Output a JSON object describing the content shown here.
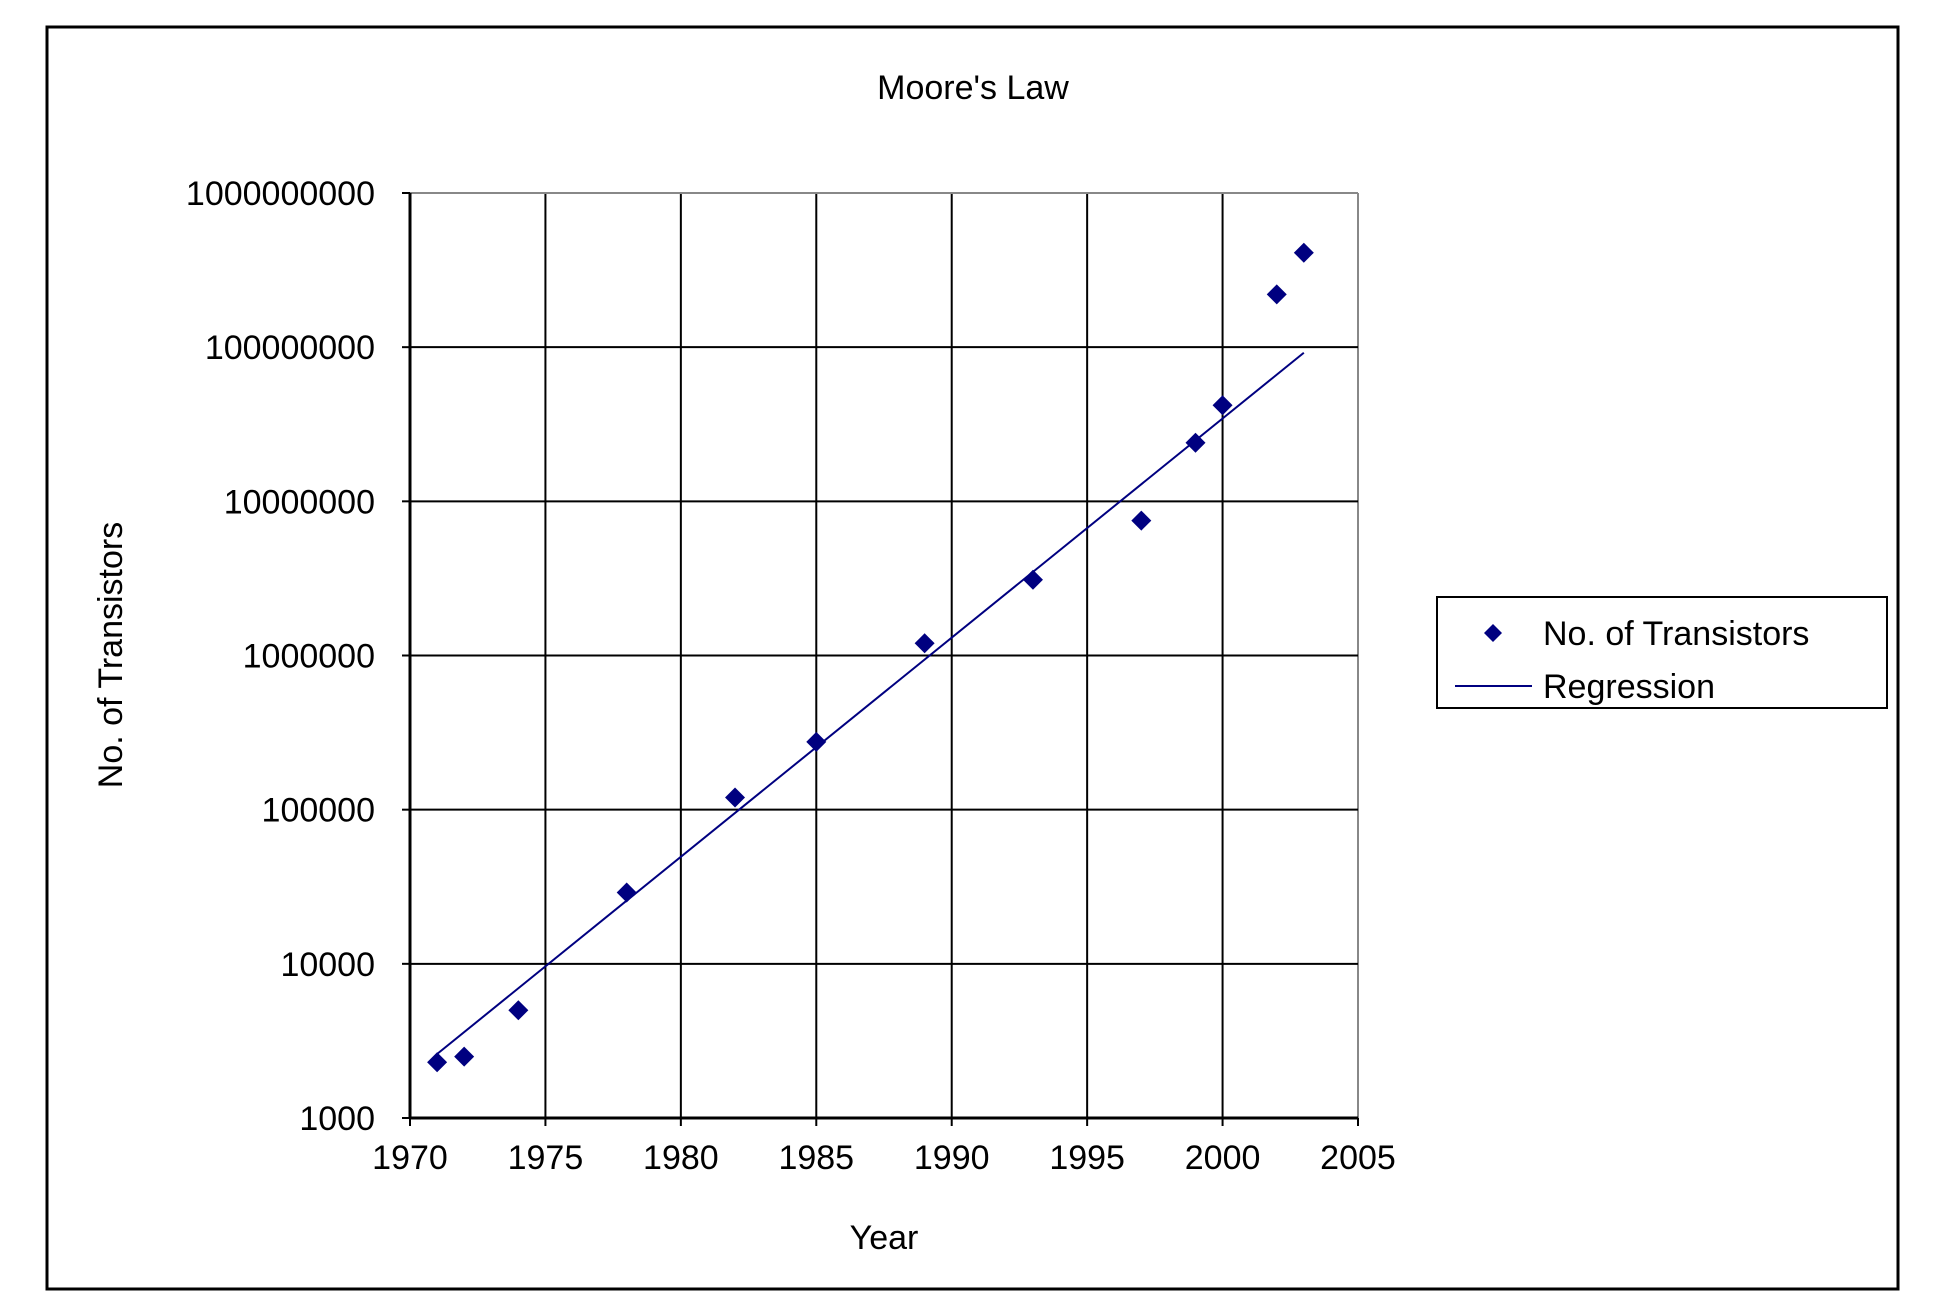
{
  "chart_data": {
    "type": "scatter",
    "title": "Moore's Law",
    "xlabel": "Year",
    "ylabel": "No. of Transistors",
    "xlim": [
      1970,
      2005
    ],
    "ylim": [
      1000,
      1000000000
    ],
    "yscale": "log",
    "grid": true,
    "legend_position": "right",
    "x_ticks": [
      "1970",
      "1975",
      "1980",
      "1985",
      "1990",
      "1995",
      "2000",
      "2005"
    ],
    "y_ticks": [
      "1000",
      "10000",
      "100000",
      "1000000",
      "10000000",
      "100000000",
      "1000000000"
    ],
    "series": [
      {
        "name": "No. of Transistors",
        "kind": "scatter",
        "color": "#000080",
        "x": [
          1971,
          1972,
          1974,
          1978,
          1982,
          1985,
          1989,
          1993,
          1997,
          1999,
          2000,
          2002,
          2003
        ],
        "y": [
          2300,
          2500,
          5000,
          29000,
          120000,
          275000,
          1200000,
          3100000,
          7500000,
          24000000,
          42000000,
          220000000,
          410000000
        ]
      },
      {
        "name": "Regression",
        "kind": "line",
        "color": "#000080",
        "x": [
          1971,
          2003
        ],
        "y": [
          2600,
          92000000
        ]
      }
    ]
  }
}
